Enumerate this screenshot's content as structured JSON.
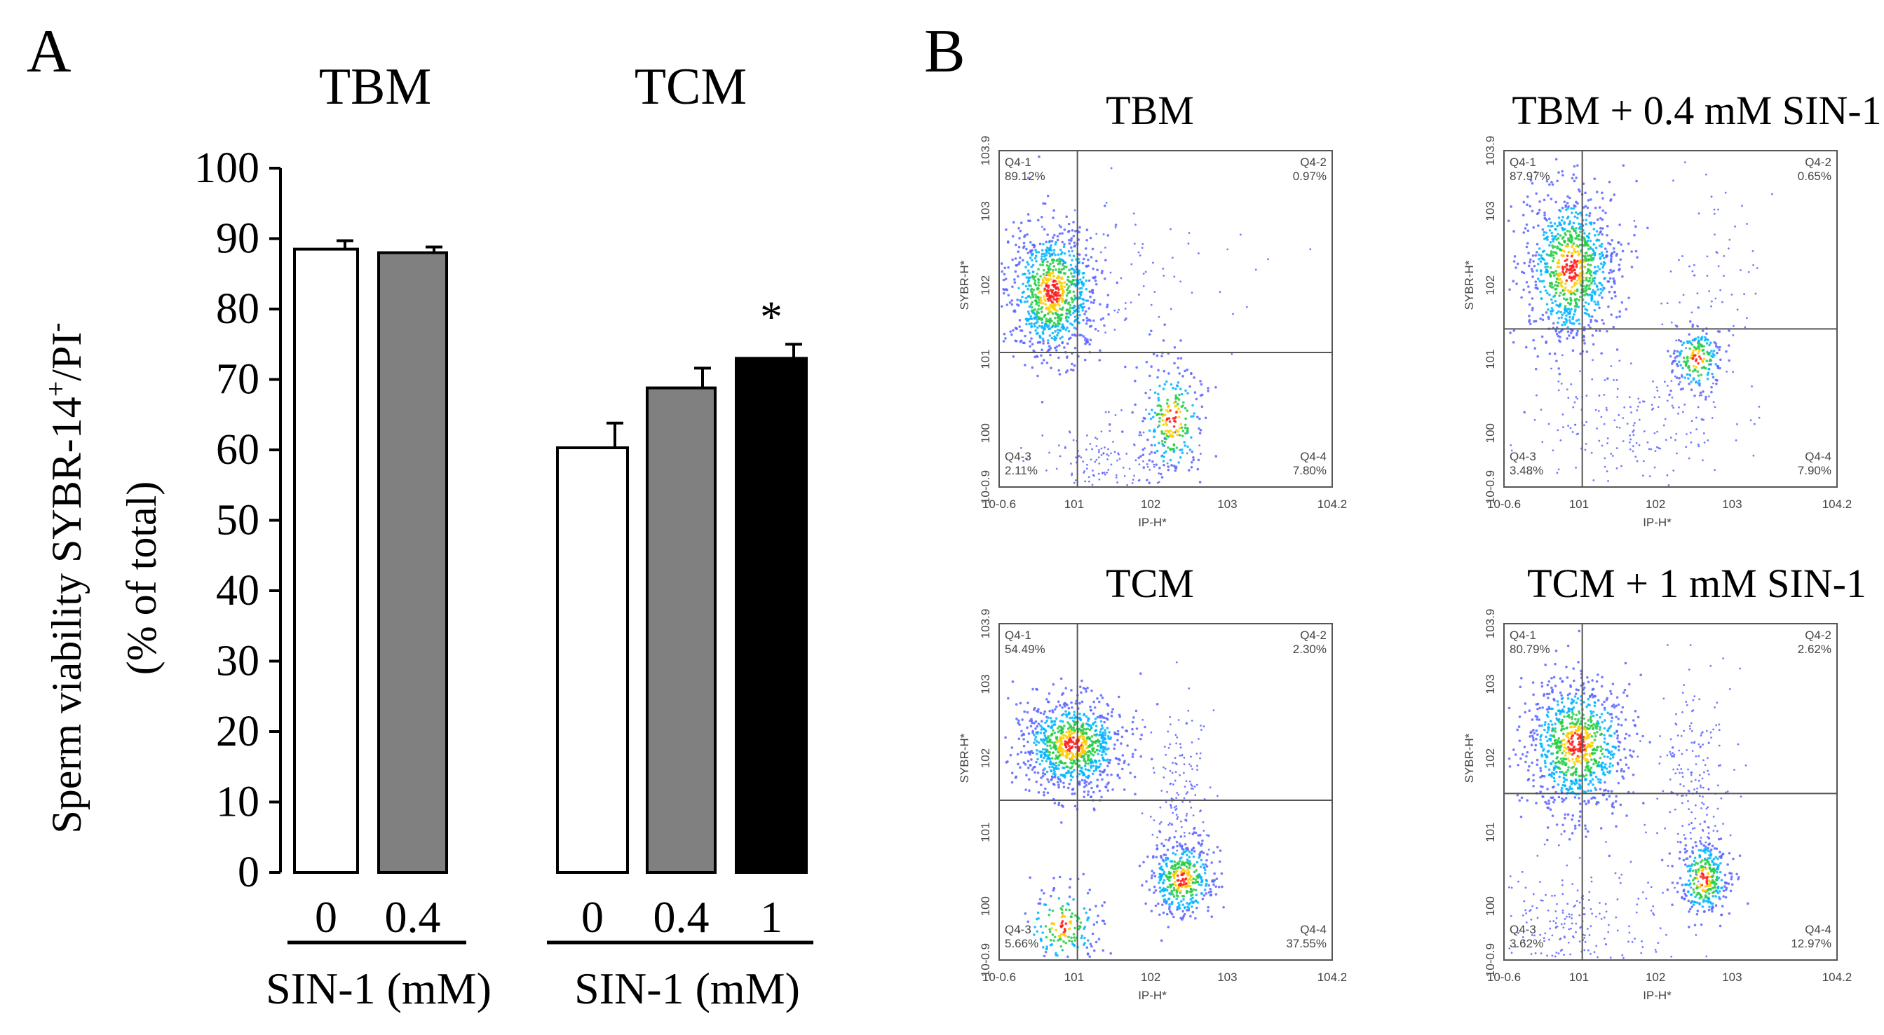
{
  "panel_labels": {
    "a": "A",
    "b": "B"
  },
  "chart_data": [
    {
      "type": "bar",
      "panel": "A",
      "ylabel_line1": "Sperm viability SYBR-14",
      "ylabel_sup": "+",
      "ylabel_mid": "/PI",
      "ylabel_sup2": "-",
      "ylabel_line2": "(% of total)",
      "ylim": [
        0,
        100
      ],
      "yticks": [
        "0",
        "10",
        "20",
        "30",
        "40",
        "50",
        "60",
        "70",
        "80",
        "90",
        "100"
      ],
      "grid": false,
      "groups": [
        {
          "title": "TBM",
          "xlabel": "SIN-1 (mM)",
          "categories": [
            "0",
            "0.4"
          ],
          "values": [
            88.5,
            88
          ],
          "errors": [
            1.2,
            0.8
          ],
          "colors": [
            "#ffffff",
            "#808080"
          ],
          "annotations": [
            "",
            ""
          ]
        },
        {
          "title": "TCM",
          "xlabel": "SIN-1 (mM)",
          "categories": [
            "0",
            "0.4",
            "1"
          ],
          "values": [
            60.3,
            68.8,
            73
          ],
          "errors": [
            3.5,
            2.8,
            2
          ],
          "colors": [
            "#ffffff",
            "#808080",
            "#000000"
          ],
          "annotations": [
            "",
            "",
            "*"
          ]
        }
      ]
    },
    {
      "type": "scatter",
      "panel": "B",
      "xlabel": "IP-H*",
      "ylabel": "SYBR-H*",
      "xticks": [
        "10-0.6",
        "101",
        "102",
        "103",
        "104.2"
      ],
      "yticks": [
        "10-0.9",
        "100",
        "101",
        "102",
        "103",
        "103.9"
      ],
      "plots": [
        {
          "title": "TBM",
          "quadrants": [
            {
              "name": "Q4-1",
              "pct": "89.12%"
            },
            {
              "name": "Q4-2",
              "pct": "0.97%"
            },
            {
              "name": "Q4-3",
              "pct": "2.11%"
            },
            {
              "name": "Q4-4",
              "pct": "7.80%"
            }
          ]
        },
        {
          "title": "TBM + 0.4 mM SIN-1",
          "quadrants": [
            {
              "name": "Q4-1",
              "pct": "87.97%"
            },
            {
              "name": "Q4-2",
              "pct": "0.65%"
            },
            {
              "name": "Q4-3",
              "pct": "3.48%"
            },
            {
              "name": "Q4-4",
              "pct": "7.90%"
            }
          ]
        },
        {
          "title": "TCM",
          "quadrants": [
            {
              "name": "Q4-1",
              "pct": "54.49%"
            },
            {
              "name": "Q4-2",
              "pct": "2.30%"
            },
            {
              "name": "Q4-3",
              "pct": "5.66%"
            },
            {
              "name": "Q4-4",
              "pct": "37.55%"
            }
          ]
        },
        {
          "title": "TCM + 1 mM SIN-1",
          "quadrants": [
            {
              "name": "Q4-1",
              "pct": "80.79%"
            },
            {
              "name": "Q4-2",
              "pct": "2.62%"
            },
            {
              "name": "Q4-3",
              "pct": "3.62%"
            },
            {
              "name": "Q4-4",
              "pct": "12.97%"
            }
          ]
        }
      ]
    }
  ]
}
